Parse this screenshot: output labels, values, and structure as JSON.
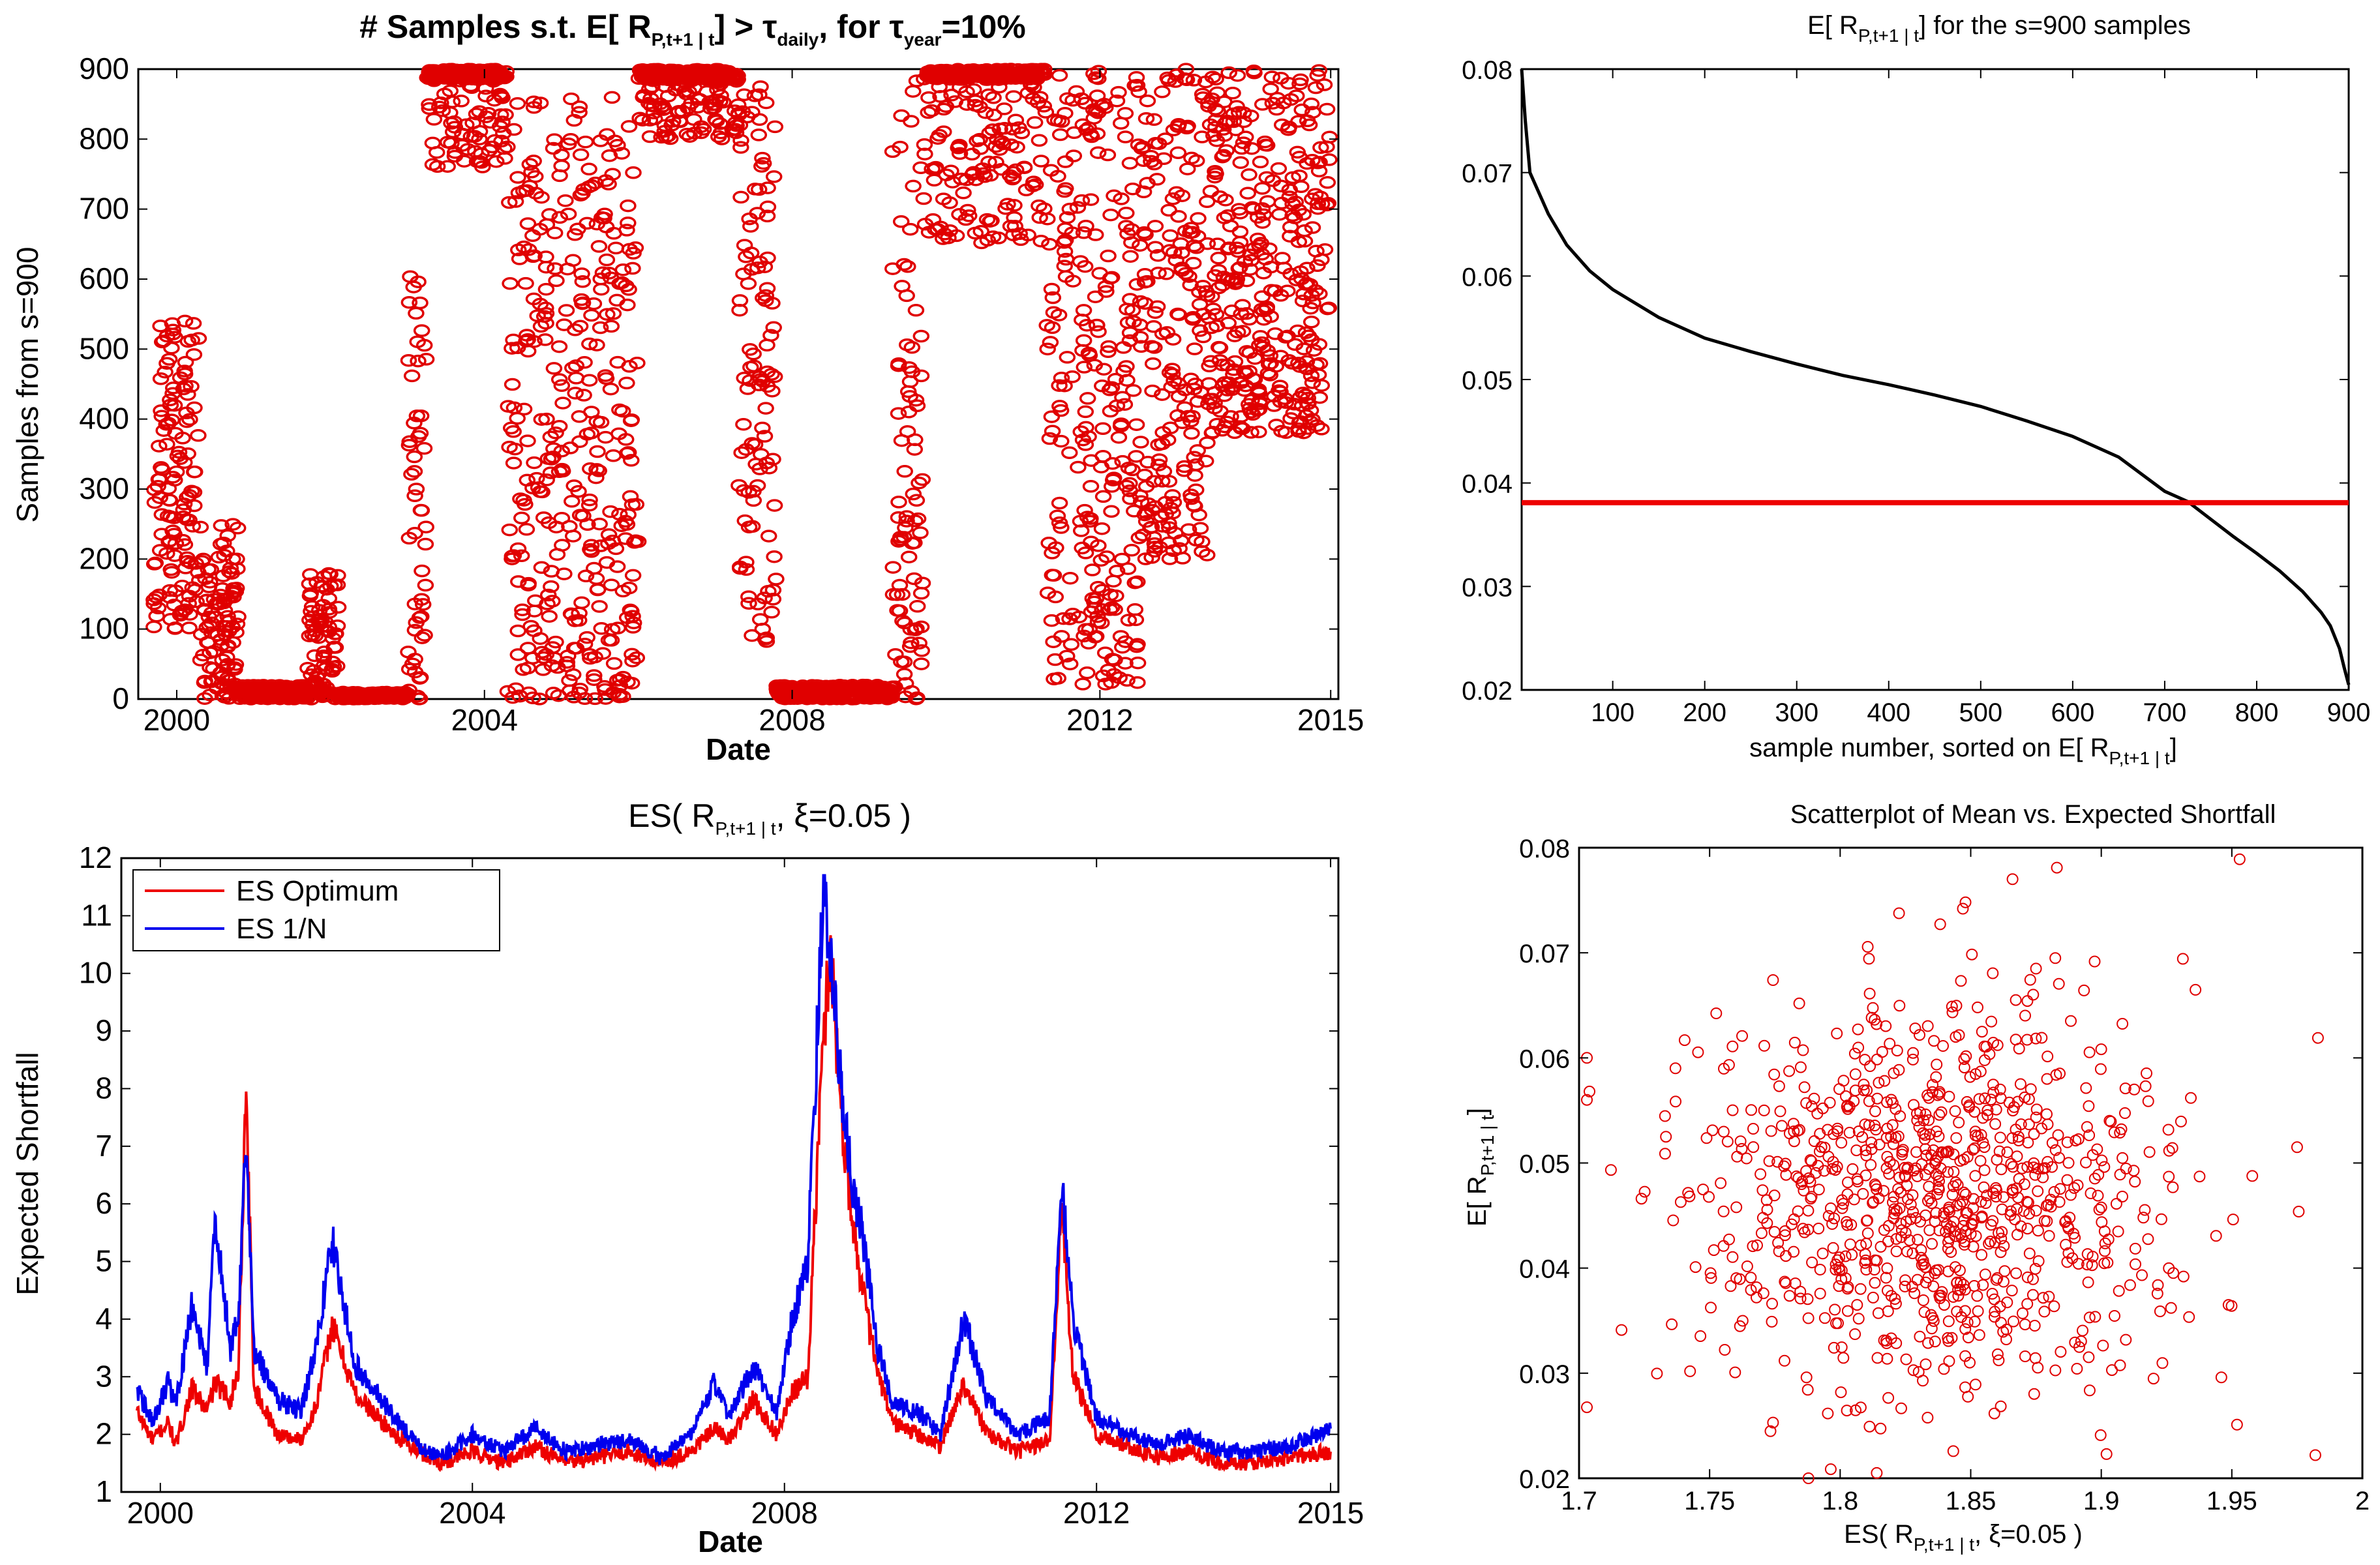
{
  "chart_data": [
    {
      "id": "samples",
      "type": "scatter",
      "title": "# Samples s.t. E[ R",
      "title_sub": "P,t+1 | t",
      "title_mid": "] > τ",
      "title_sub2": "daily",
      "title_mid2": ",  for  τ",
      "title_sub3": "year",
      "title_end": "=10%",
      "xlabel": "Date",
      "ylabel": "Samples from s=900",
      "xlim": [
        1999.5,
        2015.1
      ],
      "ylim": [
        0,
        900
      ],
      "xticks": [
        2000,
        2004,
        2008,
        2012,
        2015
      ],
      "xtick_labels": [
        "2000",
        "2004",
        "2008",
        "2012",
        "2015"
      ],
      "yticks": [
        0,
        100,
        200,
        300,
        400,
        500,
        600,
        700,
        800,
        900
      ],
      "ytick_labels": [
        "0",
        "100",
        "200",
        "300",
        "400",
        "500",
        "600",
        "700",
        "800",
        "900"
      ],
      "color": "#e00000",
      "regimes": [
        {
          "from": 1999.7,
          "to": 2000.3,
          "lo": 100,
          "hi": 540
        },
        {
          "from": 2000.3,
          "to": 2000.8,
          "lo": 0,
          "hi": 250
        },
        {
          "from": 2000.8,
          "to": 2001.7,
          "lo": 0,
          "hi": 20
        },
        {
          "from": 2001.7,
          "to": 2002.1,
          "lo": 0,
          "hi": 180
        },
        {
          "from": 2002.1,
          "to": 2003.0,
          "lo": 0,
          "hi": 10
        },
        {
          "from": 2003.0,
          "to": 2003.25,
          "lo": 0,
          "hi": 620
        },
        {
          "from": 2003.25,
          "to": 2004.3,
          "lo": 760,
          "hi": 900
        },
        {
          "from": 2004.3,
          "to": 2006.0,
          "lo": 0,
          "hi": 860
        },
        {
          "from": 2006.0,
          "to": 2007.3,
          "lo": 800,
          "hi": 900
        },
        {
          "from": 2007.3,
          "to": 2007.8,
          "lo": 80,
          "hi": 880
        },
        {
          "from": 2007.8,
          "to": 2009.3,
          "lo": 0,
          "hi": 20
        },
        {
          "from": 2009.3,
          "to": 2009.7,
          "lo": 0,
          "hi": 900
        },
        {
          "from": 2009.7,
          "to": 2011.3,
          "lo": 650,
          "hi": 900
        },
        {
          "from": 2011.3,
          "to": 2012.5,
          "lo": 20,
          "hi": 900
        },
        {
          "from": 2012.5,
          "to": 2013.4,
          "lo": 200,
          "hi": 900
        },
        {
          "from": 2013.4,
          "to": 2015.0,
          "lo": 380,
          "hi": 900
        }
      ]
    },
    {
      "id": "sorted-mean",
      "type": "line",
      "title": "E[ R",
      "title_sub": "P,t+1 | t",
      "title_end": "] for the s=900 samples",
      "xlabel": "sample number, sorted on E[ R",
      "xlabel_sub": "P,t+1 | t",
      "xlabel_end": "]",
      "xlim": [
        1,
        900
      ],
      "ylim": [
        0.02,
        0.08
      ],
      "xticks": [
        100,
        200,
        300,
        400,
        500,
        600,
        700,
        800,
        900
      ],
      "xtick_labels": [
        "100",
        "200",
        "300",
        "400",
        "500",
        "600",
        "700",
        "800",
        "900"
      ],
      "yticks": [
        0.02,
        0.03,
        0.04,
        0.05,
        0.06,
        0.07,
        0.08
      ],
      "ytick_labels": [
        "0.02",
        "0.03",
        "0.04",
        "0.05",
        "0.06",
        "0.07",
        "0.08"
      ],
      "threshold": 0.0381,
      "series": [
        {
          "name": "sorted E[R]",
          "color": "#000000",
          "x": [
            1,
            5,
            10,
            20,
            30,
            50,
            75,
            100,
            150,
            200,
            250,
            300,
            350,
            400,
            450,
            500,
            550,
            600,
            650,
            700,
            725,
            750,
            775,
            800,
            825,
            850,
            870,
            880,
            890,
            895,
            900
          ],
          "y": [
            0.08,
            0.075,
            0.07,
            0.068,
            0.066,
            0.063,
            0.0605,
            0.0587,
            0.056,
            0.054,
            0.0527,
            0.0515,
            0.0504,
            0.0495,
            0.0485,
            0.0474,
            0.046,
            0.0445,
            0.0425,
            0.0392,
            0.0382,
            0.0365,
            0.0348,
            0.0332,
            0.0315,
            0.0295,
            0.0275,
            0.0262,
            0.024,
            0.0222,
            0.0205
          ]
        }
      ]
    },
    {
      "id": "expected-shortfall",
      "type": "line",
      "title": "ES( R",
      "title_sub": "P,t+1 | t",
      "title_end": ", ξ=0.05 )",
      "xlabel": "Date",
      "ylabel": "Expected Shortfall",
      "xlim": [
        1999.5,
        2015.1
      ],
      "ylim": [
        1,
        12
      ],
      "xticks": [
        2000,
        2004,
        2008,
        2012,
        2015
      ],
      "xtick_labels": [
        "2000",
        "2004",
        "2008",
        "2012",
        "2015"
      ],
      "yticks": [
        1,
        2,
        3,
        4,
        5,
        6,
        7,
        8,
        9,
        10,
        11,
        12
      ],
      "ytick_labels": [
        "1",
        "2",
        "3",
        "4",
        "5",
        "6",
        "7",
        "8",
        "9",
        "10",
        "11",
        "12"
      ],
      "legend": [
        "ES Optimum",
        "ES 1/N"
      ],
      "series": [
        {
          "name": "ES Optimum",
          "color": "#ee0000",
          "x": [
            1999.7,
            1999.9,
            2000.1,
            2000.2,
            2000.4,
            2000.6,
            2000.7,
            2000.9,
            2001.0,
            2001.1,
            2001.2,
            2001.5,
            2001.8,
            2002.0,
            2002.2,
            2002.5,
            2003.0,
            2003.3,
            2003.6,
            2004.0,
            2004.4,
            2004.8,
            2005.2,
            2005.6,
            2006.0,
            2006.4,
            2006.8,
            2007.1,
            2007.3,
            2007.6,
            2007.9,
            2008.1,
            2008.3,
            2008.5,
            2008.6,
            2008.7,
            2008.85,
            2009.0,
            2009.2,
            2009.4,
            2009.7,
            2010.0,
            2010.3,
            2010.6,
            2011.0,
            2011.4,
            2011.55,
            2011.7,
            2012.0,
            2012.4,
            2012.8,
            2013.2,
            2013.6,
            2014.0,
            2014.5,
            2015.0
          ],
          "y": [
            2.4,
            1.9,
            2.2,
            1.8,
            2.8,
            2.4,
            2.9,
            2.6,
            3.1,
            8.1,
            2.8,
            2.0,
            1.9,
            2.5,
            3.9,
            2.7,
            2.0,
            1.7,
            1.5,
            1.7,
            1.5,
            1.8,
            1.5,
            1.6,
            1.7,
            1.5,
            1.7,
            2.1,
            1.9,
            2.6,
            2.0,
            2.7,
            3.0,
            9.0,
            10.5,
            8.0,
            6.0,
            4.5,
            3.0,
            2.2,
            2.0,
            1.8,
            2.9,
            2.0,
            1.7,
            1.9,
            6.0,
            3.0,
            2.0,
            1.8,
            1.6,
            1.7,
            1.5,
            1.5,
            1.6,
            1.7
          ]
        },
        {
          "name": "ES 1/N",
          "color": "#0000ee",
          "x": [
            1999.7,
            1999.9,
            2000.1,
            2000.2,
            2000.4,
            2000.6,
            2000.7,
            2000.9,
            2001.0,
            2001.1,
            2001.2,
            2001.5,
            2001.8,
            2002.0,
            2002.2,
            2002.5,
            2003.0,
            2003.3,
            2003.6,
            2004.0,
            2004.4,
            2004.8,
            2005.2,
            2005.6,
            2006.0,
            2006.4,
            2006.8,
            2007.1,
            2007.3,
            2007.6,
            2007.9,
            2008.1,
            2008.3,
            2008.5,
            2008.6,
            2008.7,
            2008.85,
            2009.0,
            2009.2,
            2009.4,
            2009.7,
            2010.0,
            2010.3,
            2010.6,
            2011.0,
            2011.4,
            2011.55,
            2011.7,
            2012.0,
            2012.4,
            2012.8,
            2013.2,
            2013.6,
            2014.0,
            2014.5,
            2015.0
          ],
          "y": [
            2.8,
            2.2,
            2.9,
            2.5,
            4.2,
            3.2,
            5.7,
            3.5,
            4.0,
            7.1,
            3.5,
            2.6,
            2.4,
            3.5,
            5.4,
            3.2,
            2.3,
            1.8,
            1.6,
            2.0,
            1.7,
            2.1,
            1.7,
            1.8,
            1.9,
            1.6,
            2.0,
            2.9,
            2.3,
            3.2,
            2.4,
            4.0,
            5.0,
            11.6,
            10.2,
            8.5,
            6.5,
            5.5,
            3.5,
            2.5,
            2.4,
            2.0,
            4.0,
            2.6,
            2.0,
            2.3,
            6.4,
            4.0,
            2.3,
            2.0,
            1.8,
            2.0,
            1.7,
            1.7,
            1.8,
            2.1
          ]
        }
      ]
    },
    {
      "id": "mean-vs-es",
      "type": "scatter",
      "title": "Scatterplot of Mean vs. Expected Shortfall",
      "xlabel": "ES( R",
      "xlabel_sub": "P,t+1 | t",
      "xlabel_end": ", ξ=0.05 )",
      "ylabel": "E[ R",
      "ylabel_sub": "P,t+1 | t",
      "ylabel_end": "]",
      "xlim": [
        1.7,
        2.0
      ],
      "ylim": [
        0.02,
        0.08
      ],
      "xticks": [
        1.7,
        1.75,
        1.8,
        1.85,
        1.9,
        1.95,
        2.0
      ],
      "xtick_labels": [
        "1.7",
        "1.75",
        "1.8",
        "1.85",
        "1.9",
        "1.95",
        "2"
      ],
      "yticks": [
        0.02,
        0.03,
        0.04,
        0.05,
        0.06,
        0.07,
        0.08
      ],
      "ytick_labels": [
        "0.02",
        "0.03",
        "0.04",
        "0.05",
        "0.06",
        "0.07",
        "0.08"
      ],
      "color": "#e00000",
      "cloud": {
        "n": 900,
        "x_mean": 1.835,
        "x_sd": 0.045,
        "y_mean": 0.047,
        "y_sd": 0.009,
        "x_range": [
          1.703,
          1.985
        ],
        "y_range": [
          0.02,
          0.079
        ]
      },
      "outliers": [
        [
          1.953,
          0.0789
        ],
        [
          1.883,
          0.0781
        ],
        [
          1.866,
          0.077
        ],
        [
          1.848,
          0.0748
        ],
        [
          1.847,
          0.0742
        ],
        [
          1.983,
          0.0619
        ],
        [
          1.975,
          0.0515
        ],
        [
          1.982,
          0.0222
        ],
        [
          1.952,
          0.0251
        ],
        [
          1.703,
          0.06
        ],
        [
          1.704,
          0.0568
        ],
        [
          1.814,
          0.0205
        ],
        [
          1.902,
          0.0223
        ],
        [
          1.946,
          0.0296
        ]
      ]
    }
  ]
}
